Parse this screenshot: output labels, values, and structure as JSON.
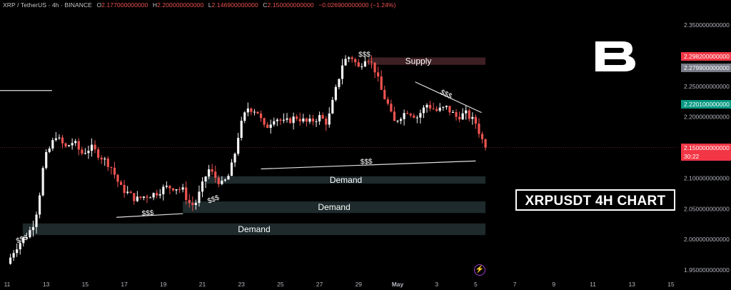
{
  "header": {
    "symbol": "XRP / TetherUS",
    "interval": "4h",
    "exchange": "BINANCE",
    "open_label": "O",
    "open": "2.177000000000",
    "high_label": "H",
    "high": "2.200000000000",
    "low_label": "L",
    "low": "2.146900000000",
    "close_label": "C",
    "close": "2.150000000000",
    "change": "−0.026900000000 (−1.24%)"
  },
  "colors": {
    "up": "#f5f5f5",
    "down": "#ef5350",
    "zone_demand": "#1e2a2c",
    "zone_supply": "#3e2024",
    "tag_red": "#f23645",
    "tag_gray": "#787b86",
    "tag_green": "#089981"
  },
  "title_box": "XRPUSDT 4H CHART",
  "icons": {
    "logo": "b-logo",
    "bolt": "lightning-icon"
  },
  "price_tags": [
    {
      "value": "2.298200000000",
      "price": 2.2982,
      "color": "#f23645"
    },
    {
      "value": "2.279900000000",
      "price": 2.2799,
      "color": "#787b86"
    },
    {
      "value": "2.220100000000",
      "price": 2.2201,
      "color": "#089981"
    },
    {
      "value": "2.150000000000",
      "price": 2.15,
      "color": "#f23645",
      "countdown": "30:22"
    }
  ],
  "chart_data": {
    "type": "candlestick",
    "ylim": [
      1.94,
      2.37
    ],
    "xlim": [
      "Apr 11",
      "May 15"
    ],
    "y_ticks": [
      "2.350000000000",
      "2.300000000000",
      "2.250000000000",
      "2.200000000000",
      "2.150000000000",
      "2.100000000000",
      "2.050000000000",
      "2.000000000000",
      "1.950000000000"
    ],
    "y_tick_values": [
      2.35,
      2.3,
      2.25,
      2.2,
      2.15,
      2.1,
      2.05,
      2.0,
      1.95
    ],
    "x_ticks": [
      "11",
      "13",
      "15",
      "17",
      "19",
      "21",
      "23",
      "25",
      "27",
      "29",
      "May",
      "3",
      "5",
      "7",
      "9",
      "11",
      "13",
      "15"
    ],
    "x_tick_days": [
      0,
      2,
      4,
      6,
      8,
      10,
      12,
      14,
      16,
      18,
      20,
      22,
      24,
      26,
      28,
      30,
      32,
      34
    ],
    "last_price": 2.15,
    "anchors": [
      [
        0,
        1.96
      ],
      [
        0.4,
        1.985
      ],
      [
        0.8,
        2.0
      ],
      [
        1.1,
        2.01
      ],
      [
        1.4,
        2.03
      ],
      [
        1.6,
        2.06
      ],
      [
        1.9,
        2.13
      ],
      [
        2.2,
        2.15
      ],
      [
        2.5,
        2.17
      ],
      [
        2.7,
        2.16
      ],
      [
        3.0,
        2.15
      ],
      [
        3.4,
        2.16
      ],
      [
        3.8,
        2.14
      ],
      [
        4.3,
        2.15
      ],
      [
        4.8,
        2.135
      ],
      [
        5.3,
        2.12
      ],
      [
        5.8,
        2.085
      ],
      [
        6.2,
        2.075
      ],
      [
        6.6,
        2.065
      ],
      [
        7.0,
        2.07
      ],
      [
        7.6,
        2.075
      ],
      [
        8.1,
        2.085
      ],
      [
        8.6,
        2.085
      ],
      [
        9.0,
        2.08
      ],
      [
        9.3,
        2.06
      ],
      [
        9.6,
        2.055
      ],
      [
        9.9,
        2.08
      ],
      [
        10.3,
        2.115
      ],
      [
        10.7,
        2.1
      ],
      [
        11.0,
        2.09
      ],
      [
        11.3,
        2.1
      ],
      [
        11.6,
        2.13
      ],
      [
        11.9,
        2.18
      ],
      [
        12.3,
        2.215
      ],
      [
        12.8,
        2.21
      ],
      [
        13.2,
        2.18
      ],
      [
        13.7,
        2.2
      ],
      [
        14.2,
        2.19
      ],
      [
        14.8,
        2.2
      ],
      [
        15.4,
        2.19
      ],
      [
        16.0,
        2.2
      ],
      [
        16.4,
        2.19
      ],
      [
        16.8,
        2.24
      ],
      [
        17.2,
        2.29
      ],
      [
        17.6,
        2.3
      ],
      [
        18.0,
        2.28
      ],
      [
        18.4,
        2.3
      ],
      [
        18.8,
        2.28
      ],
      [
        19.2,
        2.24
      ],
      [
        19.5,
        2.22
      ],
      [
        19.8,
        2.19
      ],
      [
        20.1,
        2.2
      ],
      [
        20.5,
        2.21
      ],
      [
        21.0,
        2.2
      ],
      [
        21.5,
        2.22
      ],
      [
        22.0,
        2.21
      ],
      [
        22.5,
        2.215
      ],
      [
        23.0,
        2.2
      ],
      [
        23.5,
        2.205
      ],
      [
        24.0,
        2.19
      ],
      [
        24.3,
        2.165
      ],
      [
        24.5,
        2.15
      ]
    ],
    "seed": 7,
    "zones": [
      {
        "kind": "supply",
        "label": "Supply",
        "day_start": 18.5,
        "day_end": 24.5,
        "price_top": 2.297,
        "price_bottom": 2.285
      },
      {
        "kind": "demand",
        "label": "Demand",
        "day_start": 10.2,
        "day_end": 24.5,
        "price_top": 2.103,
        "price_bottom": 2.091
      },
      {
        "kind": "demand",
        "label": "Demand",
        "day_start": 9.0,
        "day_end": 24.5,
        "price_top": 2.062,
        "price_bottom": 2.043
      },
      {
        "kind": "demand",
        "label": "Demand",
        "day_start": 0.8,
        "day_end": 24.5,
        "price_top": 2.026,
        "price_bottom": 2.007
      }
    ],
    "liquidity_lines": [
      {
        "label": "$$$",
        "d1": 13.0,
        "p1": 2.115,
        "d2": 24.0,
        "p2": 2.128,
        "label_day": 18.4,
        "label_price": 2.128
      },
      {
        "label": "$$$",
        "d1": 5.6,
        "p1": 2.036,
        "d2": 9.0,
        "p2": 2.042,
        "label_day": 7.2,
        "label_price": 2.044
      },
      {
        "label": "$$$",
        "d1": 20.9,
        "p1": 2.257,
        "d2": 24.3,
        "p2": 2.207,
        "label_day": 22.5,
        "label_price": 2.238
      },
      {
        "label": "$$$",
        "d1": -0.5,
        "p1": 2.243,
        "d2": 2.3,
        "p2": 2.243,
        "label_day": null,
        "label_price": null
      }
    ],
    "liquidity_labels": [
      {
        "label": "$$$",
        "day": 18.3,
        "price": 2.298,
        "angle": 0
      },
      {
        "label": "$$$",
        "day": 0.8,
        "price": 1.997,
        "angle": -20
      },
      {
        "label": "$$$",
        "day": 10.6,
        "price": 2.062,
        "angle": -20
      }
    ]
  }
}
